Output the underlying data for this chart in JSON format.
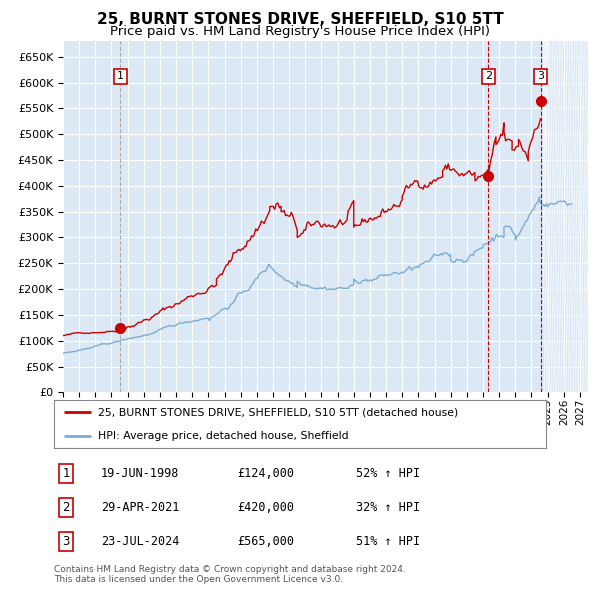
{
  "title": "25, BURNT STONES DRIVE, SHEFFIELD, S10 5TT",
  "subtitle": "Price paid vs. HM Land Registry's House Price Index (HPI)",
  "legend_label_red": "25, BURNT STONES DRIVE, SHEFFIELD, S10 5TT (detached house)",
  "legend_label_blue": "HPI: Average price, detached house, Sheffield",
  "footer_line1": "Contains HM Land Registry data © Crown copyright and database right 2024.",
  "footer_line2": "This data is licensed under the Open Government Licence v3.0.",
  "transactions": [
    {
      "num": 1,
      "date": "19-JUN-1998",
      "price": 124000,
      "pct": "52% ↑ HPI",
      "x": 1998.55
    },
    {
      "num": 2,
      "date": "29-APR-2021",
      "price": 420000,
      "pct": "32% ↑ HPI",
      "x": 2021.33
    },
    {
      "num": 3,
      "date": "23-JUL-2024",
      "price": 565000,
      "pct": "51% ↑ HPI",
      "x": 2024.56
    }
  ],
  "ylim": [
    0,
    680000
  ],
  "xlim_start": 1995.0,
  "xlim_end": 2027.5,
  "background_color": "#dce9f5",
  "hatch_color": "#c8d8ea",
  "red_color": "#cc0000",
  "blue_color": "#7badd4",
  "grid_color": "#ffffff",
  "vline1_color": "#aaaaaa",
  "vline23_color": "#cc0000",
  "title_fontsize": 11,
  "subtitle_fontsize": 9.5
}
